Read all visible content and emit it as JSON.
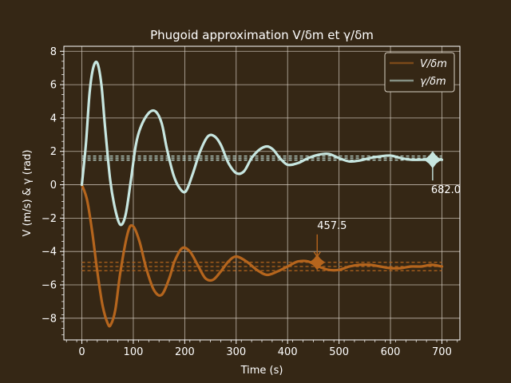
{
  "chart_data": {
    "type": "line",
    "title": "Phugoid approximation V/δm et γ/δm",
    "xlabel": "Time (s)",
    "ylabel": "V (m/s) & γ (rad)",
    "xlim": [
      -35,
      735
    ],
    "ylim": [
      -9.3,
      8.3
    ],
    "xticks": [
      0,
      100,
      200,
      300,
      400,
      500,
      600,
      700
    ],
    "yticks": [
      -8,
      -6,
      -4,
      -2,
      0,
      2,
      4,
      6,
      8
    ],
    "grid": true,
    "legend_position": "top-right",
    "colors": {
      "background": "#352715",
      "V": "#b5651d",
      "gamma": "#c7e6e0",
      "grid": "#d8d0c4",
      "axes": "#ffffff"
    },
    "series": [
      {
        "name": "V/δm",
        "key": "V",
        "steady_state": -4.9,
        "reference_lines": [
          -4.65,
          -4.9,
          -5.15
        ],
        "x": [
          0,
          10,
          20,
          30,
          40,
          50,
          56,
          65,
          75,
          90,
          100,
          112,
          125,
          140,
          155,
          170,
          180,
          195,
          210,
          225,
          240,
          255,
          270,
          285,
          300,
          320,
          340,
          360,
          380,
          400,
          420,
          440,
          460,
          480,
          500,
          520,
          540,
          560,
          580,
          600,
          620,
          640,
          660,
          680,
          700
        ],
        "values": [
          0,
          -0.9,
          -2.8,
          -5.2,
          -7.2,
          -8.3,
          -8.4,
          -7.5,
          -5.2,
          -2.8,
          -2.5,
          -3.4,
          -5.0,
          -6.3,
          -6.6,
          -5.6,
          -4.6,
          -3.8,
          -4.0,
          -4.8,
          -5.6,
          -5.7,
          -5.2,
          -4.6,
          -4.3,
          -4.6,
          -5.1,
          -5.4,
          -5.2,
          -4.9,
          -4.6,
          -4.6,
          -4.9,
          -5.1,
          -5.1,
          -4.9,
          -4.8,
          -4.8,
          -4.9,
          -5.0,
          -5.0,
          -4.9,
          -4.9,
          -4.8,
          -4.9
        ],
        "marker": {
          "x": 457.5,
          "y": -4.65,
          "label": "457.5"
        }
      },
      {
        "name": "γ/δm",
        "key": "gamma",
        "steady_state": 1.6,
        "reference_lines": [
          1.48,
          1.6,
          1.72
        ],
        "x": [
          0,
          8,
          15,
          22,
          30,
          38,
          45,
          55,
          65,
          75,
          85,
          95,
          105,
          115,
          130,
          143,
          155,
          165,
          178,
          190,
          202,
          215,
          230,
          245,
          258,
          270,
          285,
          300,
          315,
          330,
          345,
          360,
          372,
          385,
          400,
          420,
          440,
          460,
          480,
          500,
          520,
          540,
          560,
          580,
          600,
          620,
          640,
          660,
          682,
          700
        ],
        "values": [
          0,
          2.5,
          5.5,
          7.0,
          7.3,
          6.0,
          3.5,
          0.3,
          -1.5,
          -2.4,
          -1.8,
          0.2,
          2.4,
          3.5,
          4.3,
          4.4,
          3.7,
          2.2,
          0.6,
          -0.2,
          -0.4,
          0.6,
          2.0,
          2.9,
          2.9,
          2.4,
          1.3,
          0.7,
          0.8,
          1.6,
          2.1,
          2.3,
          2.1,
          1.6,
          1.2,
          1.3,
          1.6,
          1.8,
          1.85,
          1.6,
          1.4,
          1.45,
          1.6,
          1.7,
          1.75,
          1.6,
          1.5,
          1.5,
          1.5,
          1.5
        ],
        "marker": {
          "x": 682.0,
          "y": 1.5,
          "label": "682.0"
        }
      }
    ]
  },
  "legend": {
    "items": [
      {
        "label": "V/δm",
        "key": "V"
      },
      {
        "label": "γ/δm",
        "key": "gamma"
      }
    ]
  }
}
